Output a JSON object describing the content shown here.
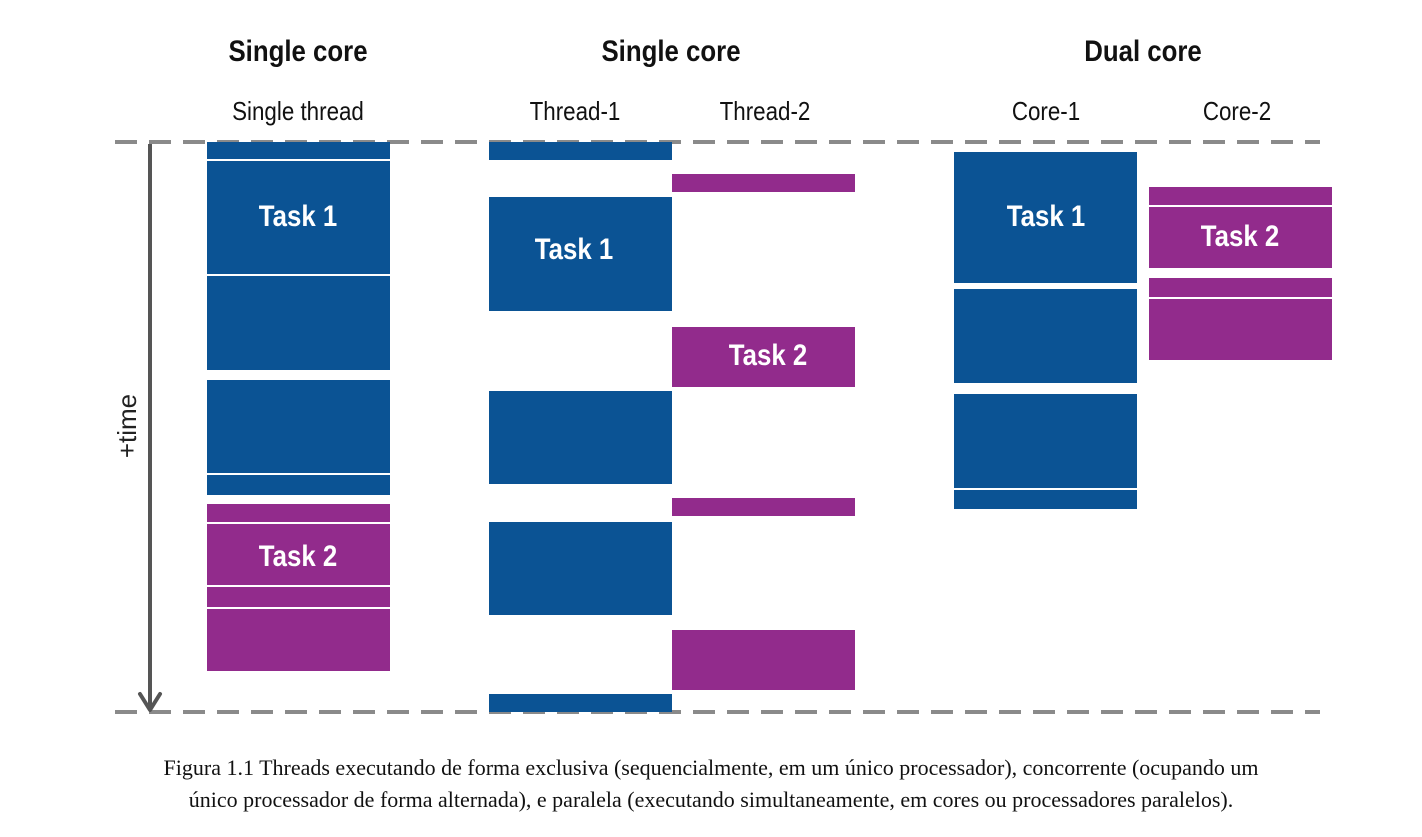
{
  "columns": [
    {
      "heading": "Single core",
      "subheadings": [
        "Single thread"
      ]
    },
    {
      "heading": "Single core",
      "subheadings": [
        "Thread-1",
        "Thread-2"
      ]
    },
    {
      "heading": "Dual core",
      "subheadings": [
        "Core-1",
        "Core-2"
      ]
    }
  ],
  "axis_label": "+time",
  "task_labels": {
    "task1": "Task 1",
    "task2": "Task 2"
  },
  "colors": {
    "task1": "#0b5394",
    "task2": "#922b8c",
    "axis": "#555555",
    "guide": "#8a8a8a"
  },
  "caption": [
    "Figura 1.1 Threads executando de forma exclusiva (sequencialmente, em um único processador), concorrente (ocupando um",
    "único processador de forma alternada), e paralela (executando simultaneamente, em cores ou processadores paralelos)."
  ]
}
